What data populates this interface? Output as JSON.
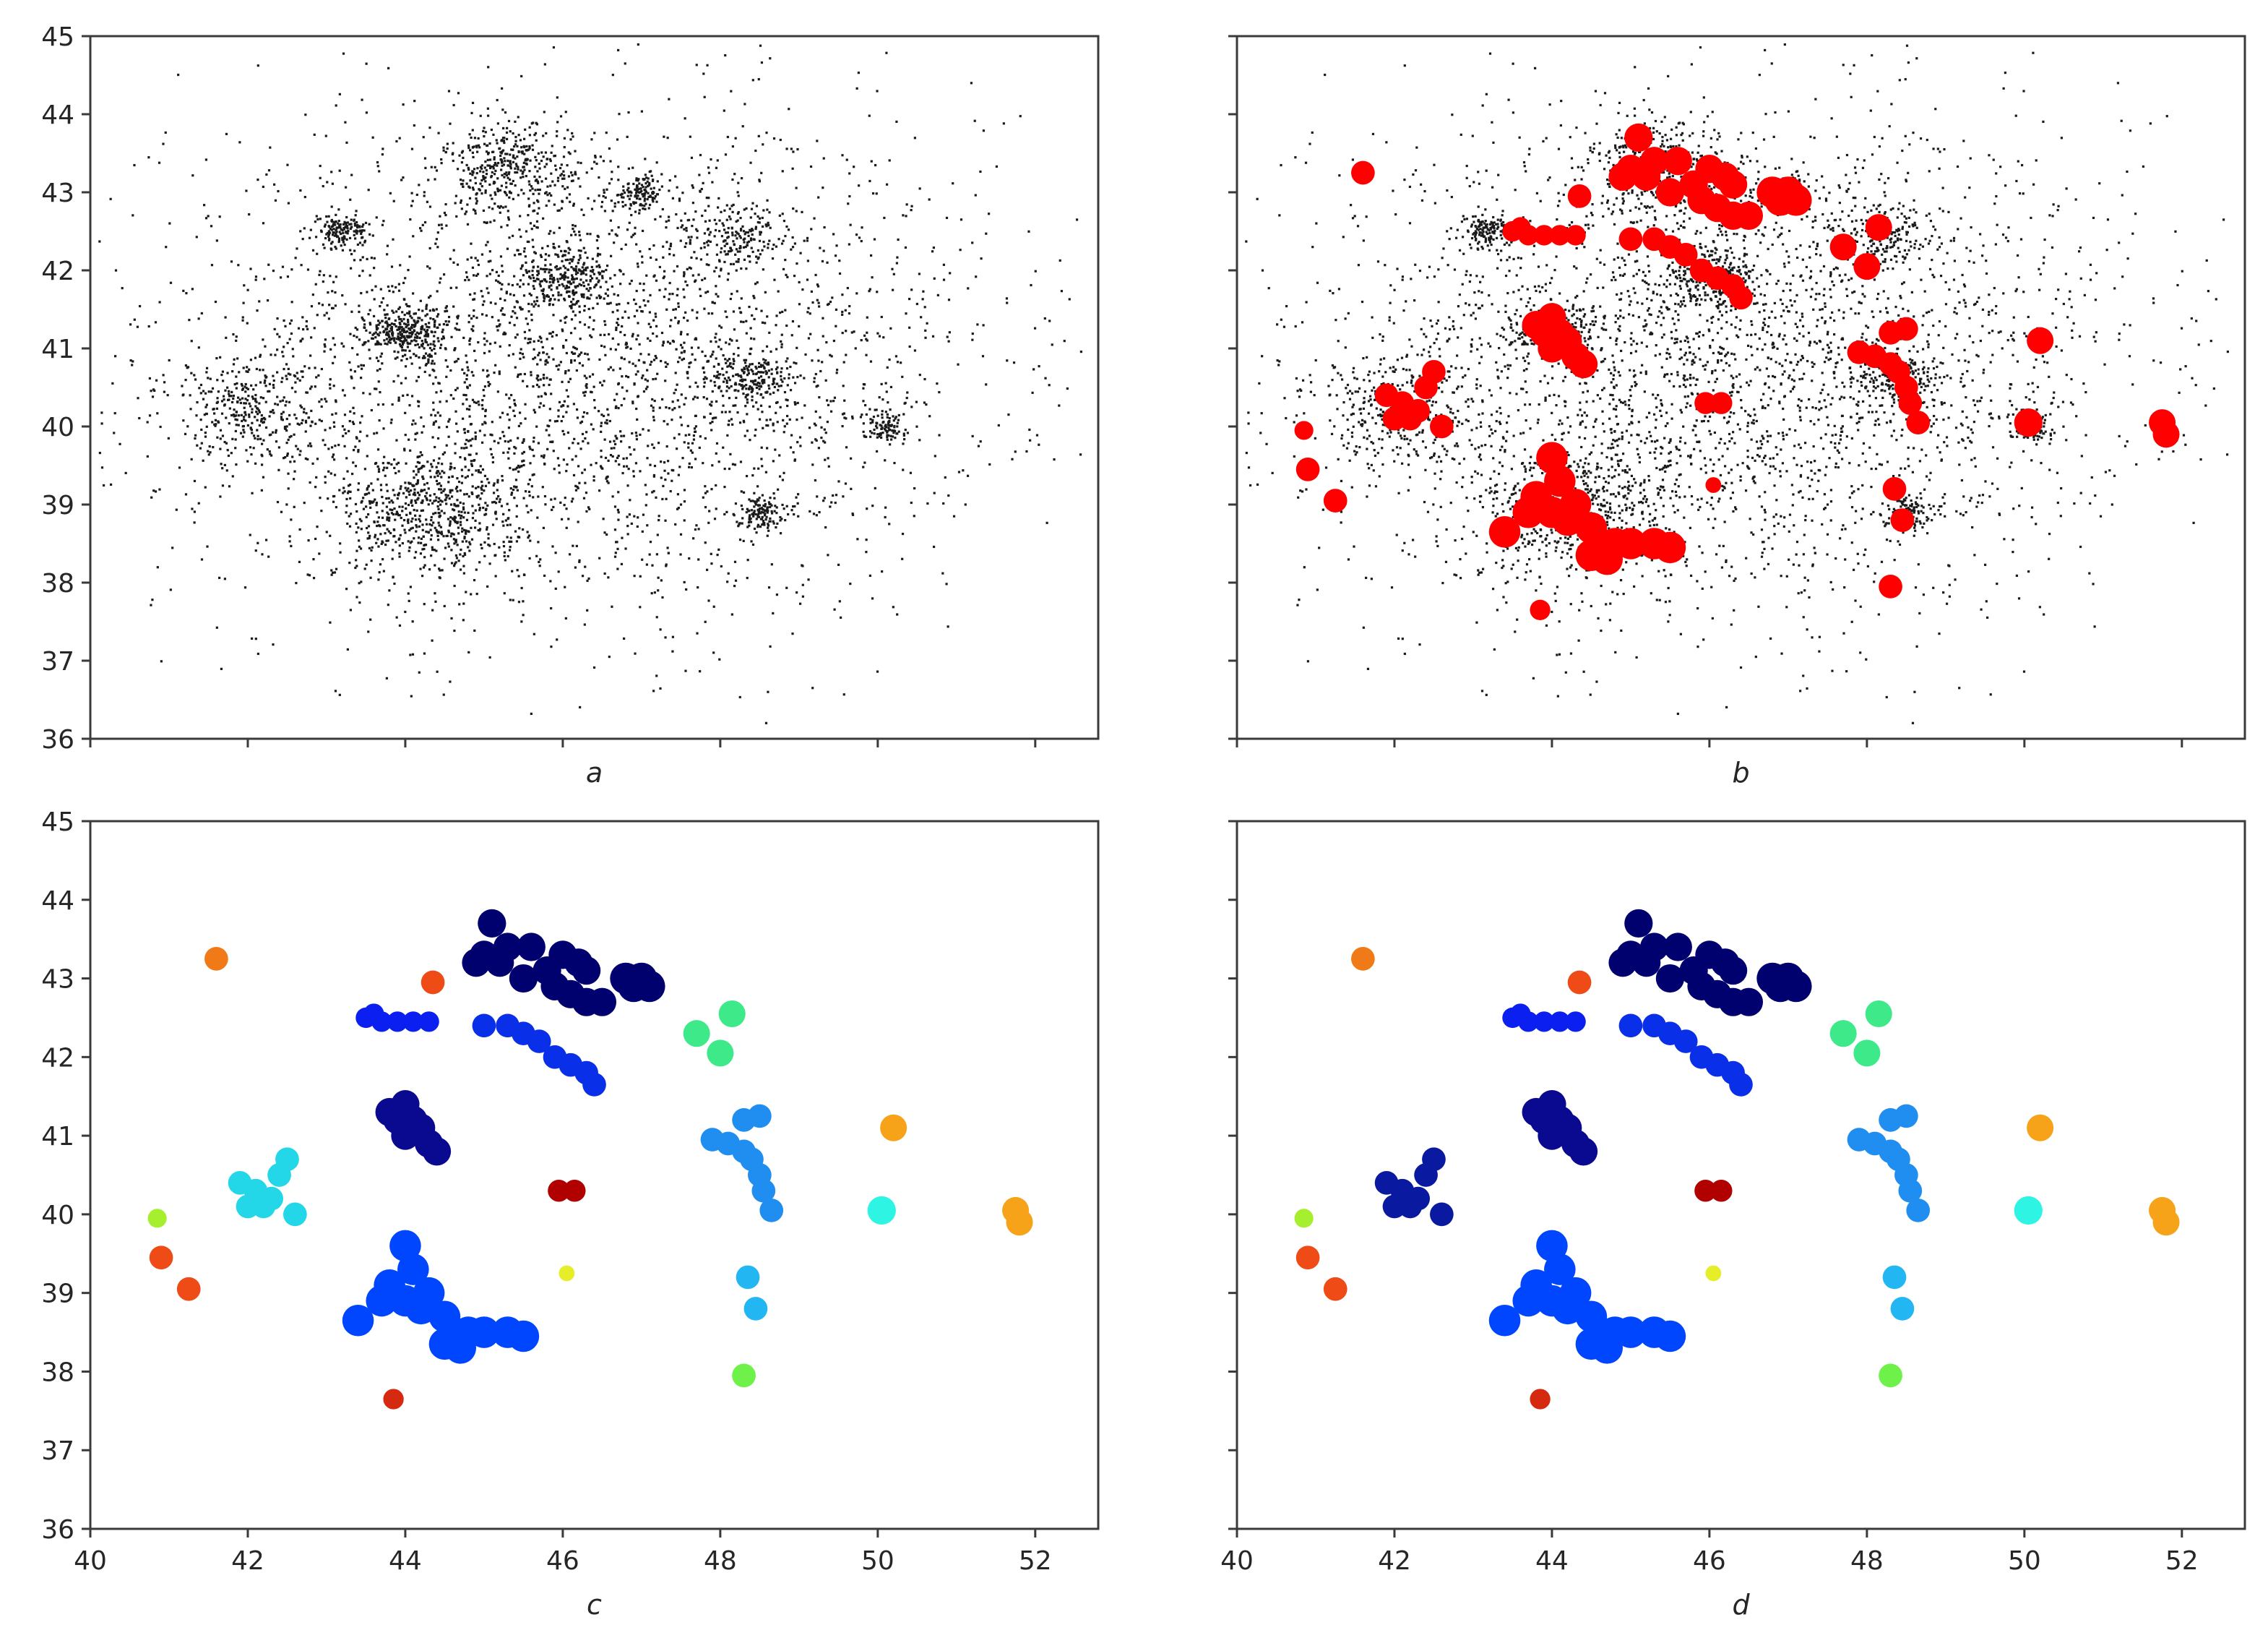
{
  "chart_data": [
    {
      "type": "scatter",
      "panel_label": "a",
      "title": "",
      "xlabel": "",
      "ylabel": "",
      "xlim": [
        40,
        52.8
      ],
      "ylim": [
        36,
        45
      ],
      "xticks": [
        40,
        42,
        44,
        46,
        48,
        50,
        52
      ],
      "show_x_tick_labels": false,
      "yticks": [
        36,
        37,
        38,
        39,
        40,
        41,
        42,
        43,
        44,
        45
      ],
      "show_y_tick_labels": true,
      "grid": false,
      "legend": "none",
      "background_points": {
        "color": "#000000",
        "description_count": 6000,
        "dense_areas": [
          {
            "x": 43.2,
            "y": 42.5,
            "spread": 0.15,
            "n": 150
          },
          {
            "x": 44.0,
            "y": 41.2,
            "spread": 0.25,
            "n": 300
          },
          {
            "x": 45.3,
            "y": 43.3,
            "spread": 0.4,
            "n": 350
          },
          {
            "x": 46.0,
            "y": 41.9,
            "spread": 0.3,
            "n": 250
          },
          {
            "x": 47.0,
            "y": 43.0,
            "spread": 0.15,
            "n": 120
          },
          {
            "x": 44.3,
            "y": 38.9,
            "spread": 0.6,
            "n": 600
          },
          {
            "x": 48.4,
            "y": 40.6,
            "spread": 0.25,
            "n": 180
          },
          {
            "x": 48.5,
            "y": 38.9,
            "spread": 0.15,
            "n": 120
          },
          {
            "x": 50.1,
            "y": 40.0,
            "spread": 0.15,
            "n": 100
          },
          {
            "x": 42.0,
            "y": 40.2,
            "spread": 0.5,
            "n": 300
          },
          {
            "x": 48.2,
            "y": 42.4,
            "spread": 0.3,
            "n": 150
          }
        ]
      }
    },
    {
      "type": "scatter",
      "panel_label": "b",
      "title": "",
      "xlabel": "",
      "ylabel": "",
      "xlim": [
        40,
        52.8
      ],
      "ylim": [
        36,
        45
      ],
      "xticks": [
        40,
        42,
        44,
        46,
        48,
        50,
        52
      ],
      "show_x_tick_labels": false,
      "yticks": [
        36,
        37,
        38,
        39,
        40,
        41,
        42,
        43,
        44,
        45
      ],
      "show_y_tick_labels": false,
      "grid": false,
      "legend": "none",
      "background_points": {
        "color": "#000000",
        "description_count": 6000
      },
      "cluster_color": "#ff0000"
    },
    {
      "type": "scatter",
      "panel_label": "c",
      "title": "",
      "xlabel": "",
      "ylabel": "",
      "xlim": [
        40,
        52.8
      ],
      "ylim": [
        36,
        45
      ],
      "xticks": [
        40,
        42,
        44,
        46,
        48,
        50,
        52
      ],
      "show_x_tick_labels": true,
      "yticks": [
        36,
        37,
        38,
        39,
        40,
        41,
        42,
        43,
        44,
        45
      ],
      "show_y_tick_labels": true,
      "grid": false,
      "legend": "none",
      "cluster_colors": {
        "c1": "#00006e",
        "c2": "#00006e",
        "c3": "#0a0a90",
        "c4": "#0b1ff0",
        "c5": "#0a2fe8",
        "c6": "#0046ff",
        "c7": "#1f8ef0",
        "c8": "#22b7f2",
        "c9": "#23d6e8",
        "c10": "#2ef4e4",
        "c11": "#3ee98a",
        "c12": "#6ef24a",
        "c13": "#a6ef2f",
        "c14": "#e6ee2a",
        "c15": "#f6a31a",
        "c16": "#f07a18",
        "c17": "#ee4b16",
        "c18": "#d62a10",
        "c19": "#b00000"
      }
    },
    {
      "type": "scatter",
      "panel_label": "d",
      "title": "",
      "xlabel": "",
      "ylabel": "",
      "xlim": [
        40,
        52.8
      ],
      "ylim": [
        36,
        45
      ],
      "xticks": [
        40,
        42,
        44,
        46,
        48,
        50,
        52
      ],
      "show_x_tick_labels": true,
      "yticks": [
        36,
        37,
        38,
        39,
        40,
        41,
        42,
        43,
        44,
        45
      ],
      "show_y_tick_labels": false,
      "grid": false,
      "legend": "none",
      "cluster_colors": {
        "c1": "#00006e",
        "c2": "#00006e",
        "c3": "#0a0a90",
        "c4": "#0b1ff0",
        "c5": "#0a2fe8",
        "c6": "#0046ff",
        "c7": "#1f8ef0",
        "c8": "#22b7f2",
        "c9": "#0a1aa0",
        "c10": "#2ef4e4",
        "c11": "#3ee98a",
        "c12": "#6ef24a",
        "c13": "#a6ef2f",
        "c14": "#e6ee2a",
        "c15": "#f6a31a",
        "c16": "#f07a18",
        "c17": "#ee4b16",
        "c18": "#d62a10",
        "c19": "#b00000"
      }
    }
  ],
  "clusters": [
    {
      "id": "c1",
      "points": [
        [
          45.1,
          43.7
        ],
        [
          45.3,
          43.4
        ],
        [
          45.6,
          43.4
        ],
        [
          45.2,
          43.2
        ],
        [
          45.8,
          43.1
        ],
        [
          45.5,
          43.0
        ],
        [
          46.0,
          43.3
        ],
        [
          46.2,
          43.2
        ],
        [
          45.9,
          42.9
        ],
        [
          46.1,
          42.8
        ],
        [
          46.3,
          42.7
        ],
        [
          46.5,
          42.7
        ],
        [
          45.0,
          43.3
        ],
        [
          44.9,
          43.2
        ],
        [
          46.3,
          43.1
        ]
      ],
      "radius": 0.18
    },
    {
      "id": "c2",
      "points": [
        [
          46.8,
          43.0
        ],
        [
          47.0,
          43.0
        ],
        [
          47.1,
          42.9
        ],
        [
          46.9,
          42.9
        ]
      ],
      "radius": 0.2
    },
    {
      "id": "c3",
      "points": [
        [
          44.0,
          41.4
        ],
        [
          43.9,
          41.2
        ],
        [
          44.1,
          41.2
        ],
        [
          44.0,
          41.0
        ],
        [
          44.3,
          40.9
        ],
        [
          44.4,
          40.8
        ],
        [
          43.8,
          41.3
        ],
        [
          44.2,
          41.1
        ]
      ],
      "radius": 0.18
    },
    {
      "id": "c4",
      "points": [
        [
          43.5,
          42.5
        ],
        [
          43.7,
          42.45
        ],
        [
          43.9,
          42.45
        ],
        [
          44.1,
          42.45
        ],
        [
          44.3,
          42.45
        ],
        [
          43.6,
          42.55
        ]
      ],
      "radius": 0.13
    },
    {
      "id": "c5",
      "points": [
        [
          45.0,
          42.4
        ],
        [
          45.3,
          42.4
        ],
        [
          45.5,
          42.3
        ],
        [
          45.7,
          42.2
        ],
        [
          45.9,
          42.0
        ],
        [
          46.1,
          41.9
        ],
        [
          46.3,
          41.8
        ],
        [
          46.4,
          41.65
        ]
      ],
      "radius": 0.15
    },
    {
      "id": "c6",
      "points": [
        [
          44.0,
          39.6
        ],
        [
          44.1,
          39.3
        ],
        [
          43.8,
          39.1
        ],
        [
          44.3,
          39.0
        ],
        [
          44.2,
          38.8
        ],
        [
          44.5,
          38.7
        ],
        [
          44.6,
          38.5
        ],
        [
          44.8,
          38.5
        ],
        [
          45.0,
          38.5
        ],
        [
          45.3,
          38.5
        ],
        [
          45.5,
          38.45
        ],
        [
          43.4,
          38.65
        ],
        [
          44.0,
          38.9
        ],
        [
          43.7,
          38.9
        ],
        [
          44.5,
          38.35
        ],
        [
          44.7,
          38.3
        ]
      ],
      "radius": 0.2
    },
    {
      "id": "c7",
      "points": [
        [
          47.9,
          40.95
        ],
        [
          48.1,
          40.9
        ],
        [
          48.3,
          40.8
        ],
        [
          48.4,
          40.7
        ],
        [
          48.5,
          40.5
        ],
        [
          48.55,
          40.3
        ],
        [
          48.65,
          40.05
        ],
        [
          48.3,
          41.2
        ],
        [
          48.5,
          41.25
        ]
      ],
      "radius": 0.15
    },
    {
      "id": "c8",
      "points": [
        [
          48.35,
          39.2
        ],
        [
          48.45,
          38.8
        ]
      ],
      "radius": 0.15
    },
    {
      "id": "c9",
      "points": [
        [
          41.9,
          40.4
        ],
        [
          42.1,
          40.3
        ],
        [
          42.2,
          40.1
        ],
        [
          42.4,
          40.5
        ],
        [
          42.5,
          40.7
        ],
        [
          42.3,
          40.2
        ],
        [
          42.6,
          40.0
        ],
        [
          42.0,
          40.1
        ]
      ],
      "radius": 0.15
    },
    {
      "id": "c10",
      "points": [
        [
          50.05,
          40.05
        ]
      ],
      "radius": 0.18
    },
    {
      "id": "c11",
      "points": [
        [
          47.7,
          42.3
        ],
        [
          48.15,
          42.55
        ],
        [
          48.0,
          42.05
        ]
      ],
      "radius": 0.17
    },
    {
      "id": "c12",
      "points": [
        [
          48.3,
          37.95
        ]
      ],
      "radius": 0.15
    },
    {
      "id": "c13",
      "points": [
        [
          40.85,
          39.95
        ]
      ],
      "radius": 0.12
    },
    {
      "id": "c14",
      "points": [
        [
          46.05,
          39.25
        ]
      ],
      "radius": 0.1
    },
    {
      "id": "c15",
      "points": [
        [
          50.2,
          41.1
        ],
        [
          51.75,
          40.05
        ],
        [
          51.8,
          39.9
        ]
      ],
      "radius": 0.17
    },
    {
      "id": "c16",
      "points": [
        [
          41.6,
          43.25
        ]
      ],
      "radius": 0.15
    },
    {
      "id": "c17",
      "points": [
        [
          40.9,
          39.45
        ],
        [
          41.25,
          39.05
        ],
        [
          44.35,
          42.95
        ]
      ],
      "radius": 0.15
    },
    {
      "id": "c18",
      "points": [
        [
          43.85,
          37.65
        ]
      ],
      "radius": 0.13
    },
    {
      "id": "c19",
      "points": [
        [
          45.95,
          40.3
        ],
        [
          46.15,
          40.3
        ]
      ],
      "radius": 0.14
    }
  ]
}
